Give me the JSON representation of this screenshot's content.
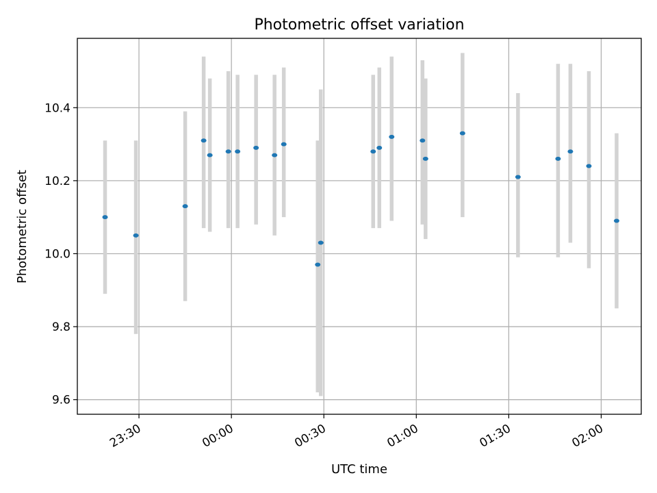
{
  "chart_data": {
    "type": "scatter",
    "title": "Photometric offset variation",
    "xlabel": "UTC time",
    "ylabel": "Photometric offset",
    "x_axis": {
      "type": "time",
      "range": [
        "23:10",
        "02:13"
      ],
      "ticks": [
        "23:30",
        "00:00",
        "00:30",
        "01:00",
        "01:30",
        "02:00"
      ]
    },
    "y_axis": {
      "range": [
        9.56,
        10.59
      ],
      "ticks": [
        9.6,
        9.8,
        10.0,
        10.2,
        10.4
      ],
      "tick_labels": [
        "9.6",
        "9.8",
        "10.0",
        "10.2",
        "10.4"
      ]
    },
    "grid": true,
    "point_color": "#1f77b4",
    "errorbar_color": "#d3d3d3",
    "points": [
      {
        "x": "23:19",
        "y": 10.1,
        "low": 9.89,
        "high": 10.31
      },
      {
        "x": "23:29",
        "y": 10.05,
        "low": 9.78,
        "high": 10.31
      },
      {
        "x": "23:45",
        "y": 10.13,
        "low": 9.87,
        "high": 10.39
      },
      {
        "x": "23:51",
        "y": 10.31,
        "low": 10.07,
        "high": 10.54
      },
      {
        "x": "23:53",
        "y": 10.27,
        "low": 10.06,
        "high": 10.48
      },
      {
        "x": "23:59",
        "y": 10.28,
        "low": 10.07,
        "high": 10.5
      },
      {
        "x": "00:02",
        "y": 10.28,
        "low": 10.07,
        "high": 10.49
      },
      {
        "x": "00:08",
        "y": 10.29,
        "low": 10.08,
        "high": 10.49
      },
      {
        "x": "00:14",
        "y": 10.27,
        "low": 10.05,
        "high": 10.49
      },
      {
        "x": "00:17",
        "y": 10.3,
        "low": 10.1,
        "high": 10.51
      },
      {
        "x": "00:28",
        "y": 9.97,
        "low": 9.62,
        "high": 10.31
      },
      {
        "x": "00:29",
        "y": 10.03,
        "low": 9.61,
        "high": 10.45
      },
      {
        "x": "00:46",
        "y": 10.28,
        "low": 10.07,
        "high": 10.49
      },
      {
        "x": "00:48",
        "y": 10.29,
        "low": 10.07,
        "high": 10.51
      },
      {
        "x": "00:52",
        "y": 10.32,
        "low": 10.09,
        "high": 10.54
      },
      {
        "x": "01:02",
        "y": 10.31,
        "low": 10.08,
        "high": 10.53
      },
      {
        "x": "01:03",
        "y": 10.26,
        "low": 10.04,
        "high": 10.48
      },
      {
        "x": "01:15",
        "y": 10.33,
        "low": 10.1,
        "high": 10.55
      },
      {
        "x": "01:33",
        "y": 10.21,
        "low": 9.99,
        "high": 10.44
      },
      {
        "x": "01:46",
        "y": 10.26,
        "low": 9.99,
        "high": 10.52
      },
      {
        "x": "01:50",
        "y": 10.28,
        "low": 10.03,
        "high": 10.52
      },
      {
        "x": "01:56",
        "y": 10.24,
        "low": 9.96,
        "high": 10.5
      },
      {
        "x": "02:05",
        "y": 10.09,
        "low": 9.85,
        "high": 10.33
      }
    ]
  }
}
